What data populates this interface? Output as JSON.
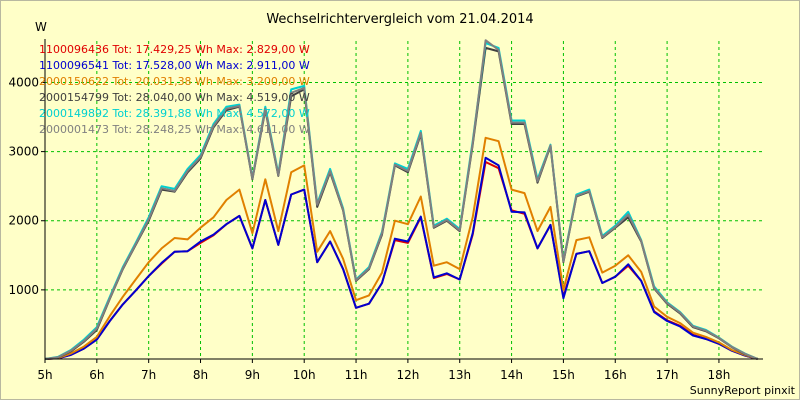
{
  "chart_data": {
    "type": "line",
    "title": "Wechselrichtervergleich vom 21.04.2014",
    "ylabel": "W",
    "xlabel": "",
    "credit": "SunnyReport pinxit",
    "ylim": [
      0,
      4600
    ],
    "xlim": [
      5,
      18.85
    ],
    "grid": true,
    "legend_position": "top-left",
    "x_ticks": [
      {
        "value": 5,
        "label": "5h"
      },
      {
        "value": 6,
        "label": "6h"
      },
      {
        "value": 7,
        "label": "7h"
      },
      {
        "value": 8,
        "label": "8h"
      },
      {
        "value": 9,
        "label": "9h"
      },
      {
        "value": 10,
        "label": "10h"
      },
      {
        "value": 11,
        "label": "11h"
      },
      {
        "value": 12,
        "label": "12h"
      },
      {
        "value": 13,
        "label": "13h"
      },
      {
        "value": 14,
        "label": "14h"
      },
      {
        "value": 15,
        "label": "15h"
      },
      {
        "value": 16,
        "label": "16h"
      },
      {
        "value": 17,
        "label": "17h"
      },
      {
        "value": 18,
        "label": "18h"
      }
    ],
    "y_ticks": [
      {
        "value": 1000,
        "label": "1000"
      },
      {
        "value": 2000,
        "label": "2000"
      },
      {
        "value": 3000,
        "label": "3000"
      },
      {
        "value": 4000,
        "label": "4000"
      }
    ],
    "x": [
      5.0,
      5.25,
      5.5,
      5.75,
      6.0,
      6.25,
      6.5,
      6.75,
      7.0,
      7.25,
      7.5,
      7.75,
      8.0,
      8.25,
      8.5,
      8.75,
      9.0,
      9.25,
      9.5,
      9.75,
      10.0,
      10.25,
      10.5,
      10.75,
      11.0,
      11.25,
      11.5,
      11.75,
      12.0,
      12.25,
      12.5,
      12.75,
      13.0,
      13.25,
      13.5,
      13.75,
      14.0,
      14.25,
      14.5,
      14.75,
      15.0,
      15.25,
      15.5,
      15.75,
      16.0,
      16.25,
      16.5,
      16.75,
      17.0,
      17.25,
      17.5,
      17.75,
      18.0,
      18.25,
      18.5,
      18.75
    ],
    "series": [
      {
        "name": "1100096436 Tot: 17.429,25 Wh Max: 2.829,00 W",
        "color": "#e00000",
        "values": [
          0,
          10,
          60,
          150,
          280,
          550,
          790,
          990,
          1200,
          1380,
          1550,
          1560,
          1680,
          1790,
          1950,
          2070,
          1600,
          2300,
          1650,
          2380,
          2450,
          1400,
          1700,
          1300,
          740,
          800,
          1100,
          1720,
          1680,
          2050,
          1170,
          1230,
          1150,
          1800,
          2850,
          2760,
          2150,
          2100,
          1600,
          1940,
          900,
          1520,
          1560,
          1100,
          1190,
          1350,
          1130,
          690,
          560,
          480,
          350,
          290,
          220,
          120,
          50,
          0
        ]
      },
      {
        "name": "1100096541 Tot: 17.528,00 Wh Max: 2.911,00 W",
        "color": "#0000d0",
        "values": [
          0,
          10,
          60,
          150,
          280,
          550,
          790,
          990,
          1200,
          1390,
          1550,
          1560,
          1700,
          1800,
          1950,
          2070,
          1600,
          2300,
          1650,
          2380,
          2450,
          1400,
          1700,
          1300,
          740,
          800,
          1100,
          1740,
          1700,
          2060,
          1180,
          1240,
          1150,
          1820,
          2910,
          2800,
          2130,
          2120,
          1600,
          1940,
          880,
          1520,
          1560,
          1100,
          1190,
          1370,
          1130,
          680,
          550,
          470,
          340,
          290,
          220,
          120,
          50,
          0
        ]
      },
      {
        "name": "2000150622 Tot: 20.031,38 Wh Max: 3.200,00 W",
        "color": "#e08000",
        "values": [
          0,
          15,
          80,
          180,
          320,
          620,
          900,
          1150,
          1400,
          1600,
          1750,
          1730,
          1900,
          2050,
          2300,
          2450,
          1820,
          2600,
          1850,
          2700,
          2800,
          1550,
          1850,
          1450,
          850,
          920,
          1250,
          2000,
          1950,
          2350,
          1350,
          1400,
          1300,
          2050,
          3200,
          3150,
          2450,
          2400,
          1850,
          2200,
          1000,
          1720,
          1760,
          1250,
          1350,
          1500,
          1260,
          760,
          610,
          520,
          380,
          320,
          240,
          130,
          60,
          0
        ]
      },
      {
        "name": "2000154799 Tot: 28.040,00 Wh Max: 4.519,00 W",
        "color": "#404040",
        "values": [
          0,
          20,
          110,
          250,
          420,
          870,
          1300,
          1650,
          2000,
          2450,
          2420,
          2700,
          2900,
          3350,
          3600,
          3650,
          2600,
          3600,
          2650,
          3800,
          3900,
          2200,
          2700,
          2150,
          1130,
          1300,
          1800,
          2800,
          2700,
          3250,
          1900,
          2000,
          1850,
          3100,
          4500,
          4450,
          3400,
          3400,
          2550,
          3080,
          1400,
          2350,
          2420,
          1750,
          1900,
          2050,
          1700,
          1020,
          800,
          660,
          460,
          400,
          300,
          170,
          70,
          0
        ]
      },
      {
        "name": "2000149892 Tot: 28.391,88 Wh Max: 4.572,00 W",
        "color": "#00d0d0",
        "values": [
          0,
          30,
          130,
          280,
          460,
          900,
          1330,
          1680,
          2050,
          2500,
          2460,
          2750,
          2950,
          3400,
          3650,
          3680,
          2620,
          3650,
          2680,
          3900,
          3950,
          2250,
          2750,
          2180,
          1150,
          1330,
          1840,
          2830,
          2750,
          3300,
          1930,
          2030,
          1880,
          3150,
          4570,
          4500,
          3450,
          3450,
          2600,
          3100,
          1420,
          2380,
          2450,
          1780,
          1930,
          2130,
          1720,
          1050,
          820,
          680,
          480,
          420,
          310,
          180,
          80,
          0
        ]
      },
      {
        "name": "2000001473 Tot: 28.248,25 Wh Max: 4.611,00 W",
        "color": "#808080",
        "values": [
          0,
          25,
          120,
          260,
          440,
          880,
          1310,
          1660,
          2020,
          2470,
          2430,
          2720,
          2920,
          3370,
          3620,
          3660,
          2610,
          3620,
          2660,
          3850,
          3920,
          2230,
          2720,
          2160,
          1140,
          1310,
          1820,
          2810,
          2720,
          3270,
          1910,
          2010,
          1860,
          3120,
          4611,
          4470,
          3420,
          3420,
          2570,
          3090,
          1410,
          2360,
          2430,
          1760,
          1910,
          2090,
          1710,
          1030,
          810,
          670,
          470,
          410,
          305,
          175,
          75,
          0
        ]
      }
    ]
  }
}
